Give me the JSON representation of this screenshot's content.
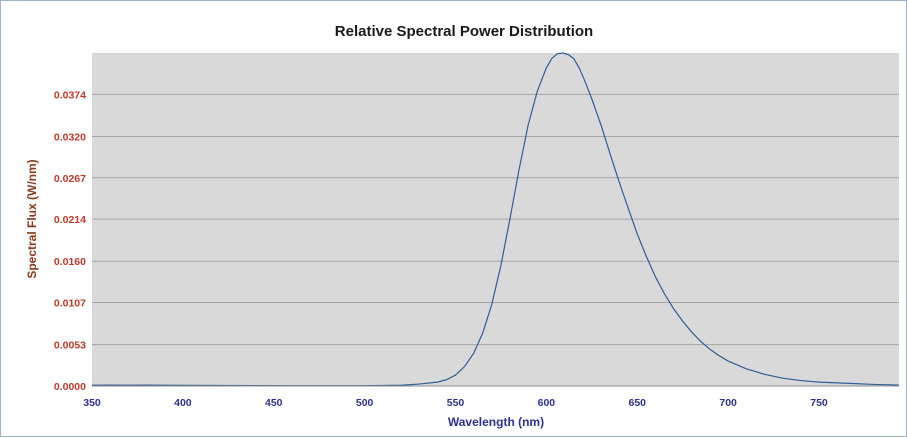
{
  "chart_data": {
    "type": "line",
    "title": "Relative Spectral Power Distribution",
    "xlabel": "Wavelength (nm)",
    "ylabel": "Spectral Flux (W/nm)",
    "xlim": [
      350,
      794
    ],
    "ylim": [
      0,
      0.0427
    ],
    "x_ticks": [
      "350",
      "400",
      "450",
      "500",
      "550",
      "600",
      "650",
      "700",
      "750"
    ],
    "y_ticks": [
      "0.0000",
      "0.0053",
      "0.0107",
      "0.0160",
      "0.0214",
      "0.0267",
      "0.0320",
      "0.0374"
    ],
    "grid": true,
    "colors": {
      "plot_background": "#d9d9d9",
      "gridline": "#a6a6a6",
      "series": "#2f5f98",
      "ytick": "#c0392b",
      "xtick": "#2e3192",
      "ylabel": "#8b3a1a"
    },
    "series": [
      {
        "x": [
          350,
          360,
          370,
          380,
          390,
          400,
          420,
          440,
          460,
          480,
          500,
          510,
          520,
          530,
          540,
          545,
          550,
          555,
          560,
          565,
          570,
          575,
          580,
          585,
          590,
          595,
          600,
          603,
          606,
          609,
          612,
          615,
          618,
          621,
          625,
          630,
          635,
          640,
          645,
          650,
          655,
          660,
          665,
          670,
          675,
          680,
          685,
          690,
          695,
          700,
          710,
          720,
          730,
          740,
          750,
          760,
          770,
          780,
          790,
          794
        ],
        "y": [
          0.0001,
          0.00012,
          0.0001,
          0.00012,
          0.0001,
          8e-05,
          6e-05,
          5e-05,
          4e-05,
          4e-05,
          4e-05,
          6e-05,
          0.0001,
          0.00025,
          0.0005,
          0.0008,
          0.0014,
          0.0025,
          0.0042,
          0.0068,
          0.0105,
          0.0155,
          0.0215,
          0.0278,
          0.0335,
          0.0378,
          0.0408,
          0.042,
          0.0426,
          0.0427,
          0.0425,
          0.042,
          0.0408,
          0.0392,
          0.0368,
          0.0335,
          0.0298,
          0.0262,
          0.0228,
          0.0195,
          0.0166,
          0.014,
          0.0118,
          0.0099,
          0.0083,
          0.0069,
          0.0057,
          0.0047,
          0.0039,
          0.0032,
          0.0022,
          0.0015,
          0.001,
          0.0007,
          0.0005,
          0.0004,
          0.0003,
          0.0002,
          0.00015,
          0.00012
        ]
      }
    ]
  }
}
